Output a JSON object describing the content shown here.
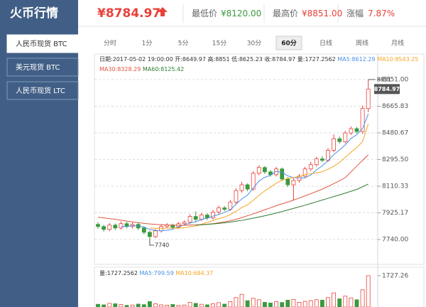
{
  "header": {
    "title": "火币行情",
    "price": "¥8784.97",
    "low_label": "最低价",
    "low": "¥8120.00",
    "high_label": "最高价",
    "high": "¥8851.00",
    "change_label": "涨幅",
    "change": "7.87%"
  },
  "sidebar": {
    "items": [
      "人民币现货 BTC",
      "美元现货 BTC",
      "人民币现货 LTC"
    ],
    "selected": 0
  },
  "tabs": {
    "items": [
      "分时",
      "1分",
      "5分",
      "15分",
      "30分",
      "60分",
      "日线",
      "周线",
      "月线"
    ],
    "selected": 5
  },
  "info": {
    "line1": "日期:2017-05-02 19:00:00 开:8649.97 高:8851 低:8625.23 收:8784.97 量:1727.2562 ",
    "ma5": "MA5:8612.29 ",
    "ma10": "MA10:8543.25",
    "ma30": "MA30:8328.29 ",
    "ma60": "MA60:8125.42",
    "vol": "量:1727.2562 ",
    "vol_ma5": "MA5:799.59 ",
    "vol_ma10": "MA10:684.37"
  },
  "chart_data": {
    "type": "candlestick",
    "open": [
      7845,
      7830,
      7810,
      7840,
      7820,
      7850,
      7830,
      7845,
      7820,
      7790,
      7760,
      7800,
      7830,
      7840,
      7825,
      7850,
      7860,
      7900,
      7880,
      7910,
      7890,
      7930,
      7960,
      7950,
      8000,
      8080,
      8120,
      8090,
      8200,
      8240,
      8210,
      8190,
      8230,
      8160,
      8120,
      8150,
      8180,
      8230,
      8260,
      8300,
      8290,
      8360,
      8440,
      8420,
      8480,
      8510,
      8490,
      8649.97
    ],
    "high": [
      7860,
      7842,
      7855,
      7852,
      7866,
      7862,
      7858,
      7856,
      7832,
      7800,
      7812,
      7844,
      7853,
      7850,
      7862,
      7872,
      7915,
      7935,
      7925,
      7922,
      7945,
      7975,
      7972,
      8015,
      8095,
      8140,
      8130,
      8215,
      8255,
      8250,
      8222,
      8245,
      8240,
      8172,
      8165,
      8195,
      8245,
      8280,
      8315,
      8320,
      8375,
      8470,
      8455,
      8495,
      8525,
      8522,
      8670,
      8851
    ],
    "low": [
      7815,
      7795,
      7798,
      7806,
      7808,
      7818,
      7817,
      7806,
      7776,
      7740,
      7750,
      7788,
      7818,
      7812,
      7814,
      7838,
      7846,
      7866,
      7868,
      7876,
      7878,
      7918,
      7936,
      7938,
      7985,
      8066,
      8075,
      8078,
      8186,
      8196,
      8176,
      8178,
      8146,
      8105,
      8010,
      8136,
      8166,
      8216,
      8246,
      8276,
      8278,
      8346,
      8406,
      8408,
      8466,
      8476,
      8475,
      8625.23
    ],
    "close": [
      7830,
      7810,
      7840,
      7820,
      7850,
      7830,
      7845,
      7820,
      7790,
      7760,
      7800,
      7830,
      7840,
      7825,
      7850,
      7860,
      7900,
      7880,
      7910,
      7890,
      7930,
      7960,
      7950,
      8000,
      8080,
      8120,
      8090,
      8200,
      8240,
      8210,
      8190,
      8230,
      8160,
      8120,
      8150,
      8180,
      8230,
      8260,
      8300,
      8290,
      8360,
      8440,
      8420,
      8480,
      8510,
      8490,
      8649.97,
      8784.97
    ],
    "up_color": "#e8413a",
    "down_color": "#3a9a3e",
    "ma_lines": [
      {
        "color": "#4a90e2",
        "values": [
          null,
          null,
          null,
          null,
          7830,
          7830,
          7837,
          7833,
          7827,
          7809,
          7803,
          7800,
          7804,
          7811,
          7829,
          7841,
          7855,
          7863,
          7880,
          7888,
          7902,
          7914,
          7928,
          7946,
          7984,
          8022,
          8048,
          8098,
          8146,
          8172,
          8186,
          8214,
          8206,
          8182,
          8170,
          8168,
          8168,
          8188,
          8224,
          8252,
          8288,
          8330,
          8362,
          8398,
          8442,
          8468,
          8510,
          8612.29
        ]
      },
      {
        "color": "#f5a623",
        "values": [
          null,
          null,
          null,
          null,
          null,
          null,
          null,
          null,
          null,
          7820,
          7817,
          7818,
          7819,
          7819,
          7819,
          7822,
          7828,
          7834,
          7846,
          7859,
          7872,
          7885,
          7896,
          7913,
          7936,
          7962,
          7981,
          8013,
          8046,
          8078,
          8104,
          8131,
          8152,
          8164,
          8171,
          8177,
          8191,
          8197,
          8203,
          8211,
          8228,
          8249,
          8275,
          8311,
          8347,
          8378,
          8420,
          8543.25
        ]
      },
      {
        "color": "#e0553f",
        "values": [
          7895,
          7890,
          7885,
          7880,
          7874,
          7868,
          7862,
          7857,
          7852,
          7848,
          7845,
          7843,
          7841,
          7840,
          7839,
          7839,
          7840,
          7841,
          7843,
          7846,
          7850,
          7856,
          7862,
          7870,
          7880,
          7892,
          7905,
          7918,
          7932,
          7946,
          7960,
          7975,
          7988,
          8000,
          8014,
          8028,
          8043,
          8058,
          8074,
          8090,
          8108,
          8128,
          8148,
          8170,
          8210,
          8250,
          8290,
          8328.29
        ]
      },
      {
        "color": "#2e7d32",
        "values": [
          null,
          null,
          null,
          null,
          null,
          null,
          null,
          null,
          null,
          null,
          null,
          null,
          null,
          null,
          null,
          null,
          null,
          7840,
          7842,
          7845,
          7848,
          7852,
          7856,
          7861,
          7867,
          7873,
          7880,
          7888,
          7896,
          7905,
          7914,
          7924,
          7934,
          7945,
          7956,
          7967,
          7978,
          7990,
          8002,
          8014,
          8026,
          8038,
          8050,
          8062,
          8075,
          8088,
          8106,
          8125.42
        ]
      }
    ],
    "ylim": [
      7587,
      8910
    ],
    "yticks": [
      {
        "value": 8851,
        "label": "8851.00"
      },
      8665.83,
      8480.67,
      {
        "value": 8295.5,
        "label": "8295.50"
      },
      8110.33,
      7925.17,
      {
        "value": 7740,
        "label": "7740.00"
      }
    ],
    "grid": true,
    "volume": {
      "values": [
        150,
        120,
        200,
        180,
        140,
        90,
        110,
        160,
        130,
        300,
        180,
        120,
        100,
        140,
        90,
        110,
        260,
        200,
        150,
        120,
        180,
        240,
        160,
        300,
        520,
        700,
        350,
        480,
        400,
        260,
        220,
        300,
        250,
        380,
        420,
        260,
        310,
        350,
        400,
        380,
        520,
        780,
        450,
        600,
        500,
        400,
        950,
        1727.2562
      ],
      "ylim": [
        0,
        2040
      ],
      "yticks": [
        {
          "value": 1727.2562,
          "label": "1727.26"
        }
      ]
    }
  }
}
